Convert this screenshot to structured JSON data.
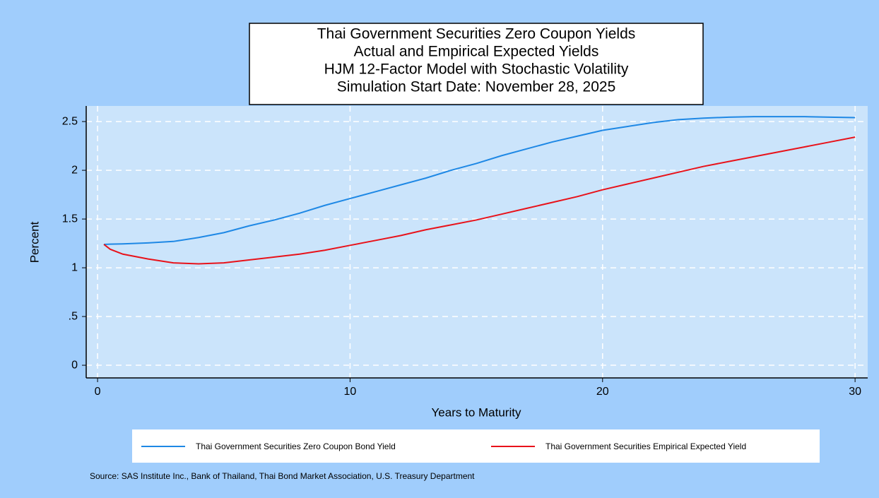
{
  "chart_data": {
    "type": "line",
    "title": [
      "Thai Government Securities Zero Coupon Yields",
      "Actual and Empirical Expected Yields",
      "HJM 12-Factor Model with Stochastic Volatility",
      "Simulation Start Date: November 28, 2025"
    ],
    "x_label": "Years to Maturity",
    "y_label": "Percent",
    "source": "Source: SAS Institute Inc., Bank of Thailand, Thai Bond Market Association, U.S. Treasury Department",
    "x": [
      0.25,
      0.5,
      1,
      2,
      3,
      4,
      5,
      6,
      7,
      8,
      9,
      10,
      11,
      12,
      13,
      14,
      15,
      16,
      17,
      18,
      19,
      20,
      21,
      22,
      23,
      24,
      25,
      26,
      27,
      28,
      29,
      30
    ],
    "series": [
      {
        "name": "Thai Government Securities Zero Coupon Bond Yield",
        "color": "#1e88e5",
        "values": [
          1.24,
          1.242,
          1.245,
          1.255,
          1.27,
          1.31,
          1.36,
          1.43,
          1.49,
          1.56,
          1.64,
          1.71,
          1.78,
          1.85,
          1.92,
          2.0,
          2.07,
          2.15,
          2.22,
          2.29,
          2.35,
          2.41,
          2.45,
          2.49,
          2.52,
          2.535,
          2.545,
          2.55,
          2.55,
          2.55,
          2.545,
          2.54
        ]
      },
      {
        "name": "Thai Government Securities Empirical Expected Yield",
        "color": "#e8121a",
        "values": [
          1.24,
          1.19,
          1.14,
          1.09,
          1.05,
          1.04,
          1.05,
          1.08,
          1.11,
          1.14,
          1.18,
          1.23,
          1.28,
          1.33,
          1.39,
          1.44,
          1.49,
          1.55,
          1.61,
          1.67,
          1.73,
          1.8,
          1.86,
          1.92,
          1.98,
          2.04,
          2.09,
          2.14,
          2.19,
          2.24,
          2.29,
          2.34
        ]
      }
    ],
    "xlim": [
      -0.45,
      30.5
    ],
    "ylim": [
      -0.13,
      2.66
    ],
    "xticks": [
      0,
      10,
      20,
      30
    ],
    "yticks": [
      0,
      {
        "value": 0.5,
        "label": ".5"
      },
      1,
      1.5,
      2,
      2.5
    ],
    "grid": true
  }
}
